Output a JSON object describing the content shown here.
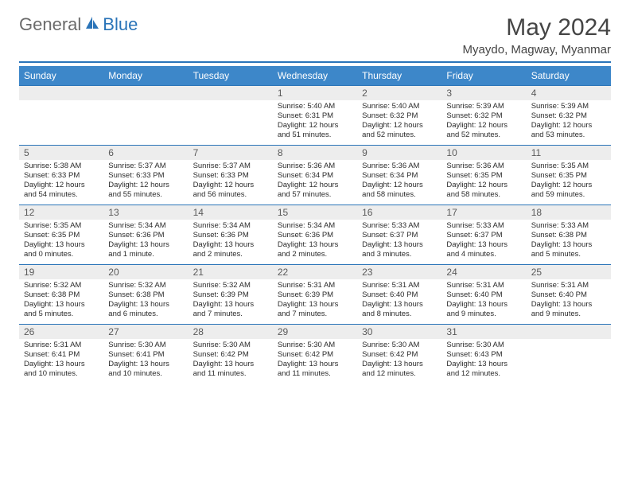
{
  "logo": {
    "part1": "General",
    "part2": "Blue"
  },
  "title": "May 2024",
  "location": "Myaydo, Magway, Myanmar",
  "colors": {
    "headerBar": "#3d87c9",
    "headerRule": "#2a74b8",
    "dayNumBg": "#ededed",
    "logoGray": "#6b6b6b",
    "logoBlue": "#2a74b8"
  },
  "weekdays": [
    "Sunday",
    "Monday",
    "Tuesday",
    "Wednesday",
    "Thursday",
    "Friday",
    "Saturday"
  ],
  "weeks": [
    [
      null,
      null,
      null,
      {
        "n": "1",
        "sr": "Sunrise: 5:40 AM",
        "ss": "Sunset: 6:31 PM",
        "dl": "Daylight: 12 hours and 51 minutes."
      },
      {
        "n": "2",
        "sr": "Sunrise: 5:40 AM",
        "ss": "Sunset: 6:32 PM",
        "dl": "Daylight: 12 hours and 52 minutes."
      },
      {
        "n": "3",
        "sr": "Sunrise: 5:39 AM",
        "ss": "Sunset: 6:32 PM",
        "dl": "Daylight: 12 hours and 52 minutes."
      },
      {
        "n": "4",
        "sr": "Sunrise: 5:39 AM",
        "ss": "Sunset: 6:32 PM",
        "dl": "Daylight: 12 hours and 53 minutes."
      }
    ],
    [
      {
        "n": "5",
        "sr": "Sunrise: 5:38 AM",
        "ss": "Sunset: 6:33 PM",
        "dl": "Daylight: 12 hours and 54 minutes."
      },
      {
        "n": "6",
        "sr": "Sunrise: 5:37 AM",
        "ss": "Sunset: 6:33 PM",
        "dl": "Daylight: 12 hours and 55 minutes."
      },
      {
        "n": "7",
        "sr": "Sunrise: 5:37 AM",
        "ss": "Sunset: 6:33 PM",
        "dl": "Daylight: 12 hours and 56 minutes."
      },
      {
        "n": "8",
        "sr": "Sunrise: 5:36 AM",
        "ss": "Sunset: 6:34 PM",
        "dl": "Daylight: 12 hours and 57 minutes."
      },
      {
        "n": "9",
        "sr": "Sunrise: 5:36 AM",
        "ss": "Sunset: 6:34 PM",
        "dl": "Daylight: 12 hours and 58 minutes."
      },
      {
        "n": "10",
        "sr": "Sunrise: 5:36 AM",
        "ss": "Sunset: 6:35 PM",
        "dl": "Daylight: 12 hours and 58 minutes."
      },
      {
        "n": "11",
        "sr": "Sunrise: 5:35 AM",
        "ss": "Sunset: 6:35 PM",
        "dl": "Daylight: 12 hours and 59 minutes."
      }
    ],
    [
      {
        "n": "12",
        "sr": "Sunrise: 5:35 AM",
        "ss": "Sunset: 6:35 PM",
        "dl": "Daylight: 13 hours and 0 minutes."
      },
      {
        "n": "13",
        "sr": "Sunrise: 5:34 AM",
        "ss": "Sunset: 6:36 PM",
        "dl": "Daylight: 13 hours and 1 minute."
      },
      {
        "n": "14",
        "sr": "Sunrise: 5:34 AM",
        "ss": "Sunset: 6:36 PM",
        "dl": "Daylight: 13 hours and 2 minutes."
      },
      {
        "n": "15",
        "sr": "Sunrise: 5:34 AM",
        "ss": "Sunset: 6:36 PM",
        "dl": "Daylight: 13 hours and 2 minutes."
      },
      {
        "n": "16",
        "sr": "Sunrise: 5:33 AM",
        "ss": "Sunset: 6:37 PM",
        "dl": "Daylight: 13 hours and 3 minutes."
      },
      {
        "n": "17",
        "sr": "Sunrise: 5:33 AM",
        "ss": "Sunset: 6:37 PM",
        "dl": "Daylight: 13 hours and 4 minutes."
      },
      {
        "n": "18",
        "sr": "Sunrise: 5:33 AM",
        "ss": "Sunset: 6:38 PM",
        "dl": "Daylight: 13 hours and 5 minutes."
      }
    ],
    [
      {
        "n": "19",
        "sr": "Sunrise: 5:32 AM",
        "ss": "Sunset: 6:38 PM",
        "dl": "Daylight: 13 hours and 5 minutes."
      },
      {
        "n": "20",
        "sr": "Sunrise: 5:32 AM",
        "ss": "Sunset: 6:38 PM",
        "dl": "Daylight: 13 hours and 6 minutes."
      },
      {
        "n": "21",
        "sr": "Sunrise: 5:32 AM",
        "ss": "Sunset: 6:39 PM",
        "dl": "Daylight: 13 hours and 7 minutes."
      },
      {
        "n": "22",
        "sr": "Sunrise: 5:31 AM",
        "ss": "Sunset: 6:39 PM",
        "dl": "Daylight: 13 hours and 7 minutes."
      },
      {
        "n": "23",
        "sr": "Sunrise: 5:31 AM",
        "ss": "Sunset: 6:40 PM",
        "dl": "Daylight: 13 hours and 8 minutes."
      },
      {
        "n": "24",
        "sr": "Sunrise: 5:31 AM",
        "ss": "Sunset: 6:40 PM",
        "dl": "Daylight: 13 hours and 9 minutes."
      },
      {
        "n": "25",
        "sr": "Sunrise: 5:31 AM",
        "ss": "Sunset: 6:40 PM",
        "dl": "Daylight: 13 hours and 9 minutes."
      }
    ],
    [
      {
        "n": "26",
        "sr": "Sunrise: 5:31 AM",
        "ss": "Sunset: 6:41 PM",
        "dl": "Daylight: 13 hours and 10 minutes."
      },
      {
        "n": "27",
        "sr": "Sunrise: 5:30 AM",
        "ss": "Sunset: 6:41 PM",
        "dl": "Daylight: 13 hours and 10 minutes."
      },
      {
        "n": "28",
        "sr": "Sunrise: 5:30 AM",
        "ss": "Sunset: 6:42 PM",
        "dl": "Daylight: 13 hours and 11 minutes."
      },
      {
        "n": "29",
        "sr": "Sunrise: 5:30 AM",
        "ss": "Sunset: 6:42 PM",
        "dl": "Daylight: 13 hours and 11 minutes."
      },
      {
        "n": "30",
        "sr": "Sunrise: 5:30 AM",
        "ss": "Sunset: 6:42 PM",
        "dl": "Daylight: 13 hours and 12 minutes."
      },
      {
        "n": "31",
        "sr": "Sunrise: 5:30 AM",
        "ss": "Sunset: 6:43 PM",
        "dl": "Daylight: 13 hours and 12 minutes."
      },
      null
    ]
  ]
}
